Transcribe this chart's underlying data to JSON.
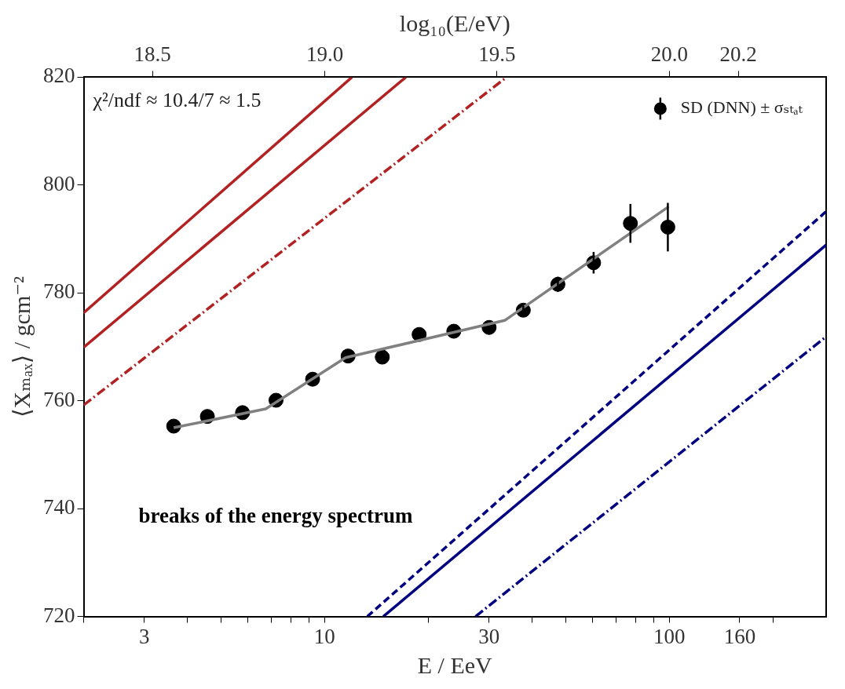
{
  "chart_data": {
    "type": "scatter",
    "xlabel": "E / EeV",
    "x2label": "log₁₀(E/eV)",
    "ylabel": "⟨Xₘₐₓ⟩ / gcm⁻²",
    "log": "x",
    "xlim": [
      2,
      285
    ],
    "xticks": [
      {
        "value": 2,
        "label": null
      },
      3,
      {
        "value": 4,
        "label": null
      },
      {
        "value": 5,
        "label": null
      },
      {
        "value": 6,
        "label": null
      },
      {
        "value": 7,
        "label": null
      },
      {
        "value": 8,
        "label": null
      },
      {
        "value": 9,
        "label": null
      },
      10,
      {
        "value": 20,
        "label": null
      },
      30,
      {
        "value": 40,
        "label": null
      },
      {
        "value": 50,
        "label": null
      },
      {
        "value": 60,
        "label": null
      },
      {
        "value": 70,
        "label": null
      },
      {
        "value": 80,
        "label": null
      },
      {
        "value": 90,
        "label": null
      },
      100,
      160,
      {
        "value": 200,
        "label": null
      }
    ],
    "x2lim": [
      18.3,
      20.455
    ],
    "x2ticks": [
      {
        "value": 18.5,
        "label": "18.5"
      },
      {
        "value": 19.0,
        "label": "19.0"
      },
      {
        "value": 19.5,
        "label": "19.5"
      },
      {
        "value": 20.0,
        "label": "20.0"
      },
      {
        "value": 20.2,
        "label": "20.2"
      }
    ],
    "ylim": [
      720,
      820
    ],
    "yticks": [
      720,
      740,
      760,
      780,
      800,
      820
    ],
    "grid": false,
    "legend": "top right",
    "annotations": [
      "χ²/ndf ≈ 10.4/7 ≈ 1.5",
      "breaks of the energy spectrum"
    ],
    "series": [
      {
        "type": "line",
        "color": "#808080",
        "line_style": "solid",
        "marker": "none",
        "x": [
          3.65,
          6.75,
          11.5,
          33.3,
          99.5
        ],
        "values": [
          755.0,
          758.5,
          768.0,
          774.9,
          796.0
        ]
      },
      {
        "type": "line",
        "color": "#b22222",
        "line_style": "solid",
        "marker": "none",
        "x": [
          2,
          12.0
        ],
        "values": [
          776.3,
          820
        ]
      },
      {
        "type": "line",
        "color": "#b22222",
        "line_style": "solid",
        "marker": "none",
        "x": [
          2,
          17.2
        ],
        "values": [
          769.9,
          820
        ]
      },
      {
        "type": "line",
        "color": "#b22222",
        "line_style": "dotted",
        "marker": "none",
        "x": [
          2,
          33.7
        ],
        "values": [
          759.2,
          820
        ]
      },
      {
        "type": "line",
        "color": "#000080",
        "line_style": "dashed",
        "marker": "none",
        "x": [
          13.3,
          285
        ],
        "values": [
          720,
          795.1
        ]
      },
      {
        "type": "line",
        "color": "#000080",
        "line_style": "solid",
        "marker": "none",
        "x": [
          14.8,
          285
        ],
        "values": [
          720,
          788.9
        ]
      },
      {
        "type": "line",
        "color": "#000080",
        "line_style": "dotted",
        "marker": "none",
        "x": [
          27.4,
          285
        ],
        "values": [
          720,
          771.9
        ]
      },
      {
        "type": "scatter",
        "name": "SD (DNN) ± σₛₜₐₜ",
        "color": "#000000",
        "marker": "circle",
        "x": [
          3.65,
          4.57,
          5.78,
          7.23,
          9.23,
          11.7,
          14.7,
          18.8,
          23.7,
          30.0,
          37.7,
          47.5,
          60.3,
          77.1,
          99.0
        ],
        "values": [
          755.3,
          757.1,
          757.8,
          760.1,
          764.0,
          768.3,
          768.1,
          772.3,
          772.9,
          773.6,
          776.8,
          781.6,
          785.6,
          792.9,
          792.2
        ],
        "errors": [
          null,
          null,
          null,
          null,
          null,
          null,
          null,
          null,
          null,
          null,
          0.8,
          1.4,
          2.0,
          3.6,
          4.5
        ]
      }
    ]
  }
}
